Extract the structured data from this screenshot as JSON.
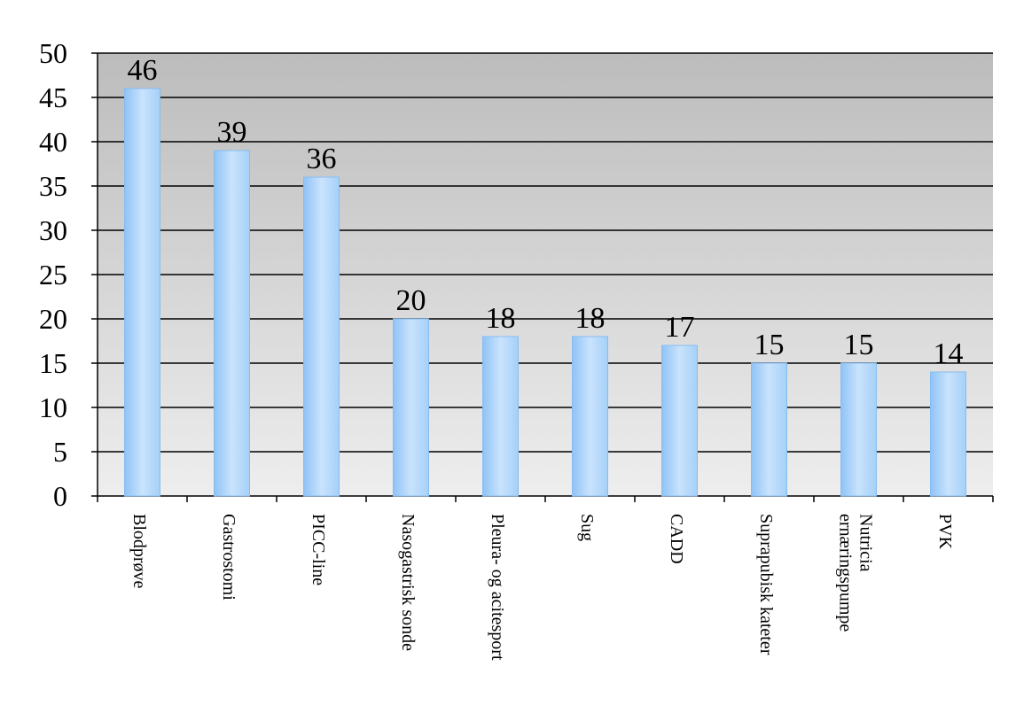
{
  "chart_data": {
    "type": "bar",
    "categories": [
      "Blodprøve",
      "Gastrostomi",
      "PICC-line",
      "Nasogastrisk sonde",
      "Pleura- og acitesport",
      "Sug",
      "CADD",
      "Suprapubisk kateter",
      "Nutricia ernæringspumpe",
      "PVK"
    ],
    "values": [
      46,
      39,
      36,
      20,
      18,
      18,
      17,
      15,
      15,
      14
    ],
    "color": "#9ccbf8",
    "ylim": [
      0,
      50
    ],
    "yticks": [
      0,
      5,
      10,
      15,
      20,
      25,
      30,
      35,
      40,
      45,
      50
    ],
    "grid": true
  }
}
